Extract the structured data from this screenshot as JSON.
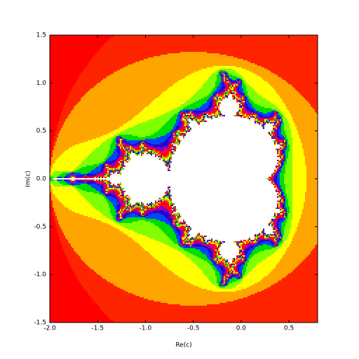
{
  "chart_data": {
    "type": "fractal",
    "xlabel": "Re(c)",
    "ylabel": "Im(c)",
    "xlim": [
      -2.0,
      0.8
    ],
    "ylim": [
      -1.5,
      1.5
    ],
    "xticks": [
      {
        "value": -2.0,
        "label": "-2.0"
      },
      {
        "value": -1.5,
        "label": "-1.5"
      },
      {
        "value": -1.0,
        "label": "-1.0"
      },
      {
        "value": -0.5,
        "label": "-0.5"
      },
      {
        "value": 0.0,
        "label": "0.0"
      },
      {
        "value": 0.5,
        "label": "0.5"
      }
    ],
    "yticks": [
      {
        "value": -1.5,
        "label": "-1.5"
      },
      {
        "value": -1.0,
        "label": "-1.0"
      },
      {
        "value": -0.5,
        "label": "-0.5"
      },
      {
        "value": 0.0,
        "label": "0.0"
      },
      {
        "value": 0.5,
        "label": "0.5"
      },
      {
        "value": 1.0,
        "label": "1.0"
      },
      {
        "value": 1.5,
        "label": "1.5"
      }
    ],
    "colors": [
      "#ff0000",
      "#ff2400",
      "#ffa500",
      "#ffff00",
      "#80ff00",
      "#00dd00",
      "#0044ff",
      "#2a00cc",
      "#8a00b0",
      "#ff0044"
    ],
    "interior_color": "#ffffff"
  }
}
